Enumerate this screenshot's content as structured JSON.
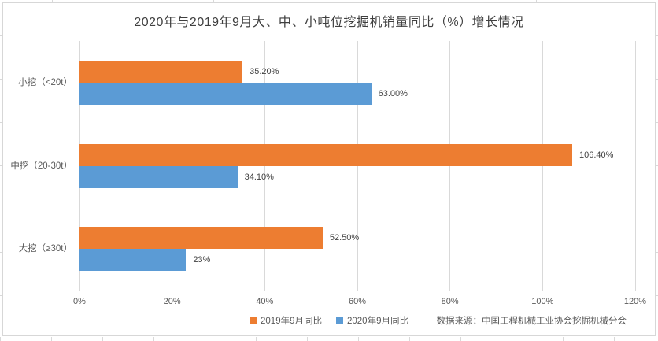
{
  "chart_data": {
    "type": "bar",
    "orientation": "horizontal",
    "title": "2020年与2019年9月大、中、小吨位挖掘机销量同比（%）增长情况",
    "categories": [
      "小挖（<20t）",
      "中挖（20-30t）",
      "大挖（≥30t）"
    ],
    "series": [
      {
        "name": "2019年9月同比",
        "color": "#ED7D31",
        "values": [
          35.2,
          106.4,
          52.5
        ],
        "labels": [
          "35.20%",
          "106.40%",
          "52.50%"
        ]
      },
      {
        "name": "2020年9月同比",
        "color": "#5B9BD5",
        "values": [
          63.0,
          34.1,
          23.0
        ],
        "labels": [
          "63.00%",
          "34.10%",
          "23%"
        ]
      }
    ],
    "xlabel": "",
    "ylabel": "",
    "xlim": [
      0,
      120
    ],
    "x_tick_values": [
      0,
      20,
      40,
      60,
      80,
      100,
      120
    ],
    "x_tick_labels": [
      "0%",
      "20%",
      "40%",
      "60%",
      "80%",
      "100%",
      "120%"
    ],
    "grid": "vertical",
    "legend_position": "bottom-center",
    "gridline_color": "#D9D9D9"
  },
  "source_note": "数据来源：中国工程机械工业协会挖掘机械分会"
}
